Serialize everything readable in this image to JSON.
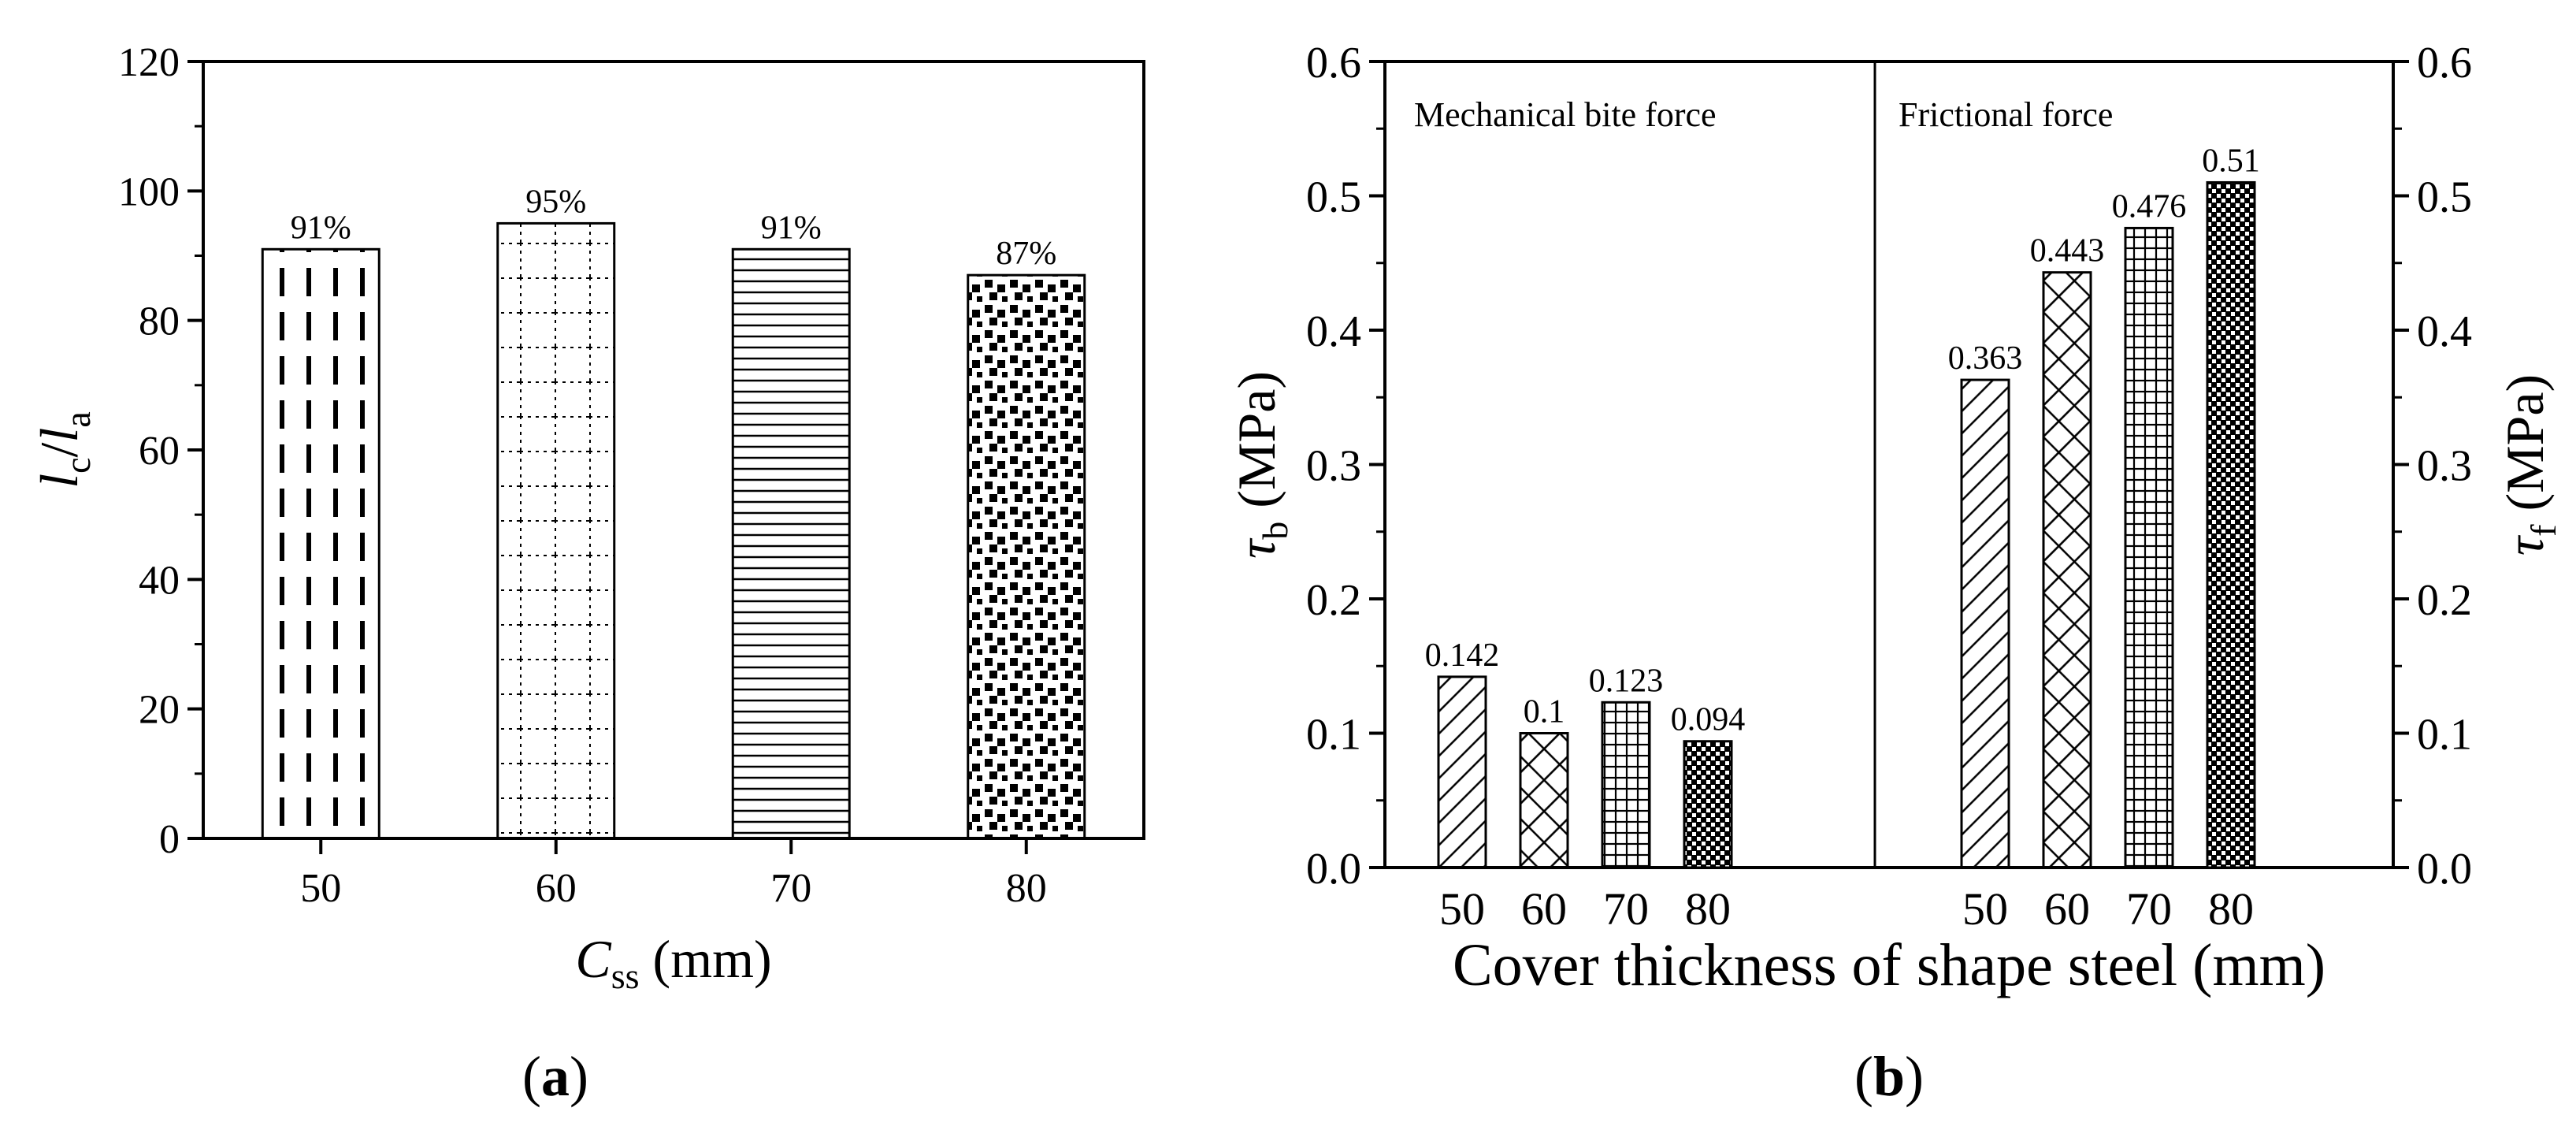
{
  "chart_data": [
    {
      "type": "bar",
      "panel_label": "a",
      "categories": [
        "50",
        "60",
        "70",
        "80"
      ],
      "values": [
        91,
        95,
        91,
        87
      ],
      "data_labels": [
        "91%",
        "95%",
        "91%",
        "87%"
      ],
      "patterns": [
        "dashes",
        "dotted-grid",
        "horizontal-lines",
        "dense-dots"
      ],
      "ylabel": {
        "main": "l",
        "sub1": "c",
        "sep": "/",
        "main2": "l",
        "sub2": "a"
      },
      "xlabel": {
        "main": "C",
        "sub": "ss",
        "rest": " (mm)"
      },
      "ylim": [
        0,
        120
      ],
      "yticks": [
        "0",
        "20",
        "40",
        "60",
        "80",
        "100",
        "120"
      ],
      "grid": false
    },
    {
      "type": "bar",
      "panel_label": "b",
      "x_title": "Cover thickness of shape steel (mm)",
      "ylim": [
        0,
        0.6
      ],
      "yticks": [
        "0.0",
        "0.1",
        "0.2",
        "0.3",
        "0.4",
        "0.5",
        "0.6"
      ],
      "ylabel_left": {
        "symbol": "τ",
        "sub": "b",
        "unit": " (MPa)"
      },
      "ylabel_right": {
        "symbol": "τ",
        "sub": "f",
        "unit": " (MPa)"
      },
      "groups": [
        {
          "name": "Mechanical bite force",
          "axis": "left",
          "categories": [
            "50",
            "60",
            "70",
            "80"
          ],
          "values": [
            0.142,
            0.1,
            0.123,
            0.094
          ],
          "data_labels": [
            "0.142",
            "0.1",
            "0.123",
            "0.094"
          ],
          "patterns": [
            "diagonal",
            "crosshatch",
            "grid",
            "dense-checker"
          ]
        },
        {
          "name": "Frictional force",
          "axis": "right",
          "categories": [
            "50",
            "60",
            "70",
            "80"
          ],
          "values": [
            0.363,
            0.443,
            0.476,
            0.51
          ],
          "data_labels": [
            "0.363",
            "0.443",
            "0.476",
            "0.51"
          ],
          "patterns": [
            "diagonal",
            "crosshatch",
            "grid",
            "dense-checker"
          ]
        }
      ],
      "grid": false
    }
  ]
}
